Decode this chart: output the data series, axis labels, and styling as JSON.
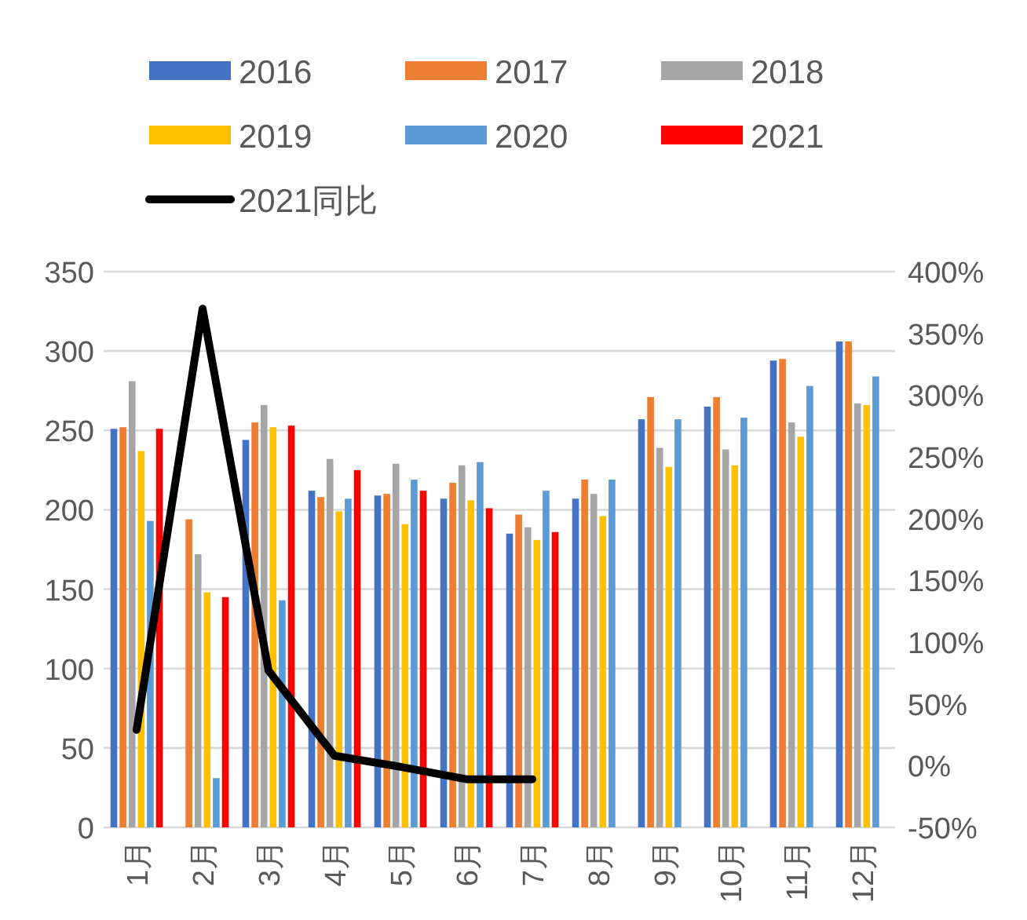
{
  "chart_data": {
    "type": "bar",
    "categories": [
      "1月",
      "2月",
      "3月",
      "4月",
      "5月",
      "6月",
      "7月",
      "8月",
      "9月",
      "10月",
      "11月",
      "12月"
    ],
    "series": [
      {
        "name": "2016",
        "color": "#4472c4",
        "values": [
          251,
          null,
          244,
          212,
          209,
          207,
          185,
          207,
          257,
          265,
          294,
          306
        ]
      },
      {
        "name": "2017",
        "color": "#ed7d31",
        "values": [
          252,
          194,
          255,
          208,
          210,
          217,
          197,
          219,
          271,
          271,
          295,
          306
        ]
      },
      {
        "name": "2018",
        "color": "#a5a5a5",
        "values": [
          281,
          172,
          266,
          232,
          229,
          228,
          189,
          210,
          239,
          238,
          255,
          267
        ]
      },
      {
        "name": "2019",
        "color": "#ffc000",
        "values": [
          237,
          148,
          252,
          199,
          191,
          206,
          181,
          196,
          227,
          228,
          246,
          266
        ]
      },
      {
        "name": "2020",
        "color": "#5b9bd5",
        "values": [
          193,
          31,
          143,
          207,
          219,
          230,
          212,
          219,
          257,
          258,
          278,
          284
        ]
      },
      {
        "name": "2021",
        "color": "#ff0000",
        "values": [
          251,
          145,
          253,
          225,
          212,
          201,
          186,
          null,
          null,
          null,
          null,
          null
        ]
      },
      {
        "name": "2021同比",
        "type": "line",
        "axis": "y2",
        "color": "#000000",
        "values": [
          29,
          370,
          77,
          8,
          -1,
          -11,
          -11,
          null,
          null,
          null,
          null,
          null
        ]
      }
    ],
    "ylim": [
      0,
      350
    ],
    "yticks": [
      0,
      50,
      100,
      150,
      200,
      250,
      300,
      350
    ],
    "y2lim": [
      -50,
      400
    ],
    "y2ticks": [
      {
        "value": -50,
        "label": "-50%"
      },
      {
        "value": 0,
        "label": "0%"
      },
      {
        "value": 50,
        "label": "50%"
      },
      {
        "value": 100,
        "label": "100%"
      },
      {
        "value": 150,
        "label": "150%"
      },
      {
        "value": 200,
        "label": "200%"
      },
      {
        "value": 250,
        "label": "250%"
      },
      {
        "value": 300,
        "label": "300%"
      },
      {
        "value": 350,
        "label": "350%"
      },
      {
        "value": 400,
        "label": "400%"
      }
    ],
    "grid": "y",
    "legend": "top"
  }
}
